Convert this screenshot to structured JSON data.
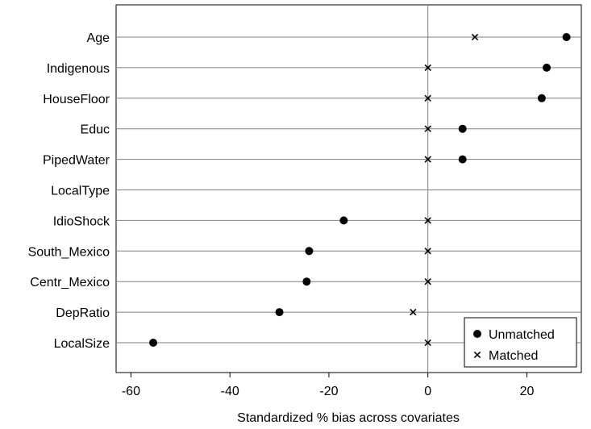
{
  "chart_data": {
    "type": "scatter",
    "title": "",
    "xlabel": "Standardized % bias across covariates",
    "ylabel": "",
    "xlim": [
      -63,
      31
    ],
    "xticks": [
      -60,
      -40,
      -20,
      0,
      20
    ],
    "x_tick_labels": [
      "-60",
      "-40",
      "-20",
      "0",
      "20"
    ],
    "grid": "horizontal lines at each covariate",
    "reference_line_x": 0,
    "legend_position": "bottom-right",
    "categories": [
      "Age",
      "Indigenous",
      "HouseFloor",
      "Educ",
      "PipedWater",
      "LocalType",
      "IdioShock",
      "South_Mexico",
      "Centr_Mexico",
      "DepRatio",
      "LocalSize"
    ],
    "series": [
      {
        "name": "Unmatched",
        "marker": "filled-circle",
        "values": [
          28,
          24,
          23,
          7,
          7,
          null,
          -17,
          -24,
          -24.5,
          -30,
          -55.5
        ]
      },
      {
        "name": "Matched",
        "marker": "x",
        "values": [
          9.5,
          0,
          0,
          0,
          0,
          null,
          0,
          0,
          0,
          -3,
          0
        ]
      }
    ]
  }
}
